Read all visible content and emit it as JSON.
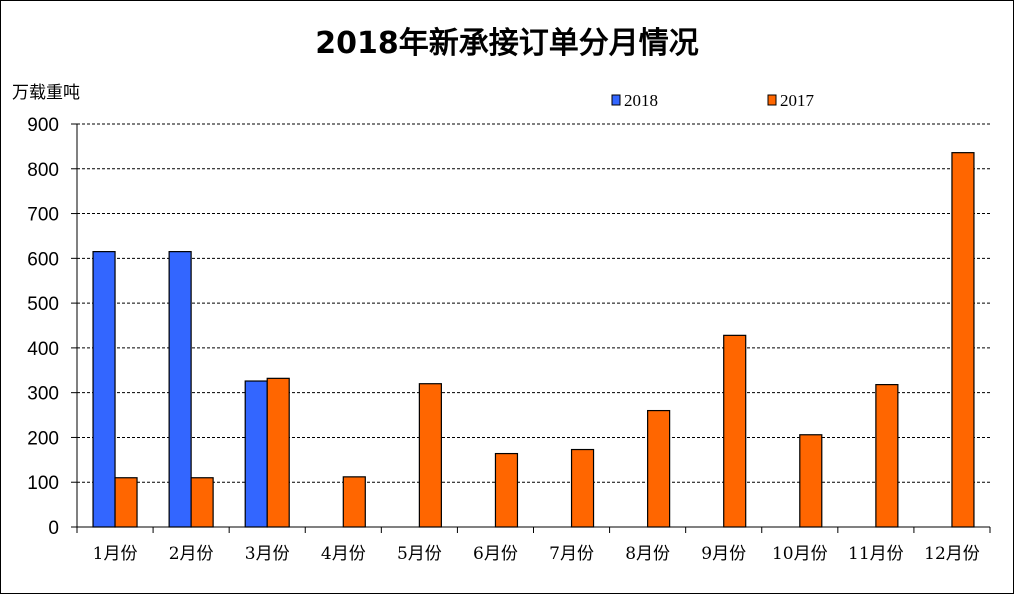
{
  "chart_data": {
    "type": "bar",
    "title": "2018年新承接订单分月情况",
    "ylabel": "万载重吨",
    "xlabel": "",
    "ylim": [
      0,
      900
    ],
    "yticks": [
      0,
      100,
      200,
      300,
      400,
      500,
      600,
      700,
      800,
      900
    ],
    "grid": true,
    "legend_position": "top-right",
    "categories": [
      "1月份",
      "2月份",
      "3月份",
      "4月份",
      "5月份",
      "6月份",
      "7月份",
      "8月份",
      "9月份",
      "10月份",
      "11月份",
      "12月份"
    ],
    "series": [
      {
        "name": "2018",
        "color": "#3366ff",
        "values": [
          615,
          615,
          326,
          null,
          null,
          null,
          null,
          null,
          null,
          null,
          null,
          null
        ]
      },
      {
        "name": "2017",
        "color": "#ff6600",
        "values": [
          110,
          110,
          332,
          112,
          320,
          164,
          173,
          260,
          428,
          206,
          318,
          836
        ]
      }
    ]
  }
}
